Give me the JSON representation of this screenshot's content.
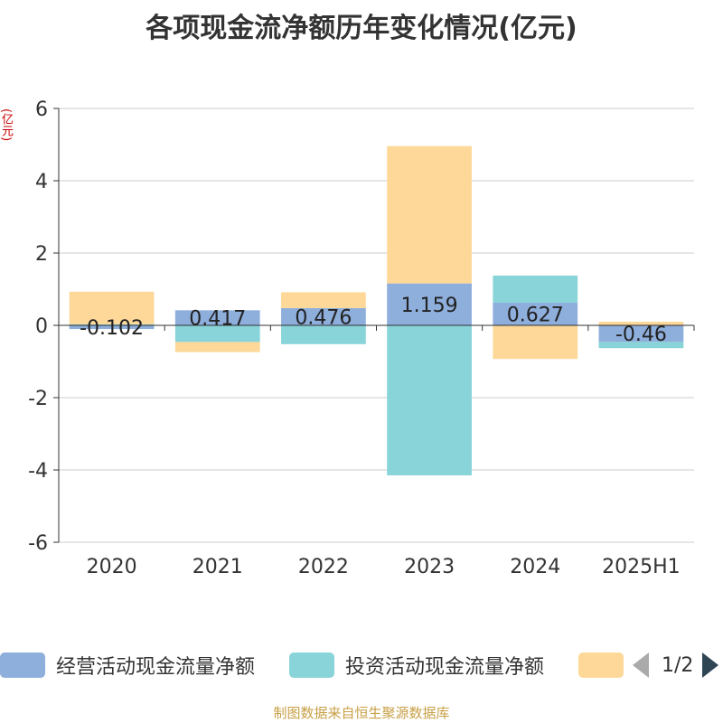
{
  "title": "各项现金流净额历年变化情况(亿元)",
  "unit_label": "(亿元)",
  "source": "制图数据来自恒生聚源数据库",
  "legend": {
    "items": [
      {
        "label": "经营活动现金流量净额",
        "color": "#8eaedc"
      },
      {
        "label": "投资活动现金流量净额",
        "color": "#88d4d8"
      },
      {
        "label": "",
        "color": "#fdd899"
      }
    ],
    "page": "1/2"
  },
  "chart_data": {
    "type": "bar",
    "stacked": true,
    "categories": [
      "2020",
      "2021",
      "2022",
      "2023",
      "2024",
      "2025H1"
    ],
    "ylim": [
      -6,
      6
    ],
    "yticks": [
      6,
      4,
      2,
      0,
      -2,
      -4,
      -6
    ],
    "series": [
      {
        "name": "经营活动现金流量净额",
        "color": "#8eaedc",
        "values": [
          -0.102,
          0.417,
          0.476,
          1.159,
          0.627,
          -0.46
        ],
        "labels": [
          "-0.102",
          "0.417",
          "0.476",
          "1.159",
          "0.627",
          "-0.46"
        ]
      },
      {
        "name": "投资活动现金流量净额",
        "color": "#88d4d8",
        "values": [
          0.03,
          -0.46,
          -0.52,
          -4.15,
          0.75,
          -0.17
        ]
      },
      {
        "name": "",
        "color": "#fdd899",
        "values": [
          0.9,
          -0.28,
          0.44,
          3.8,
          -0.93,
          0.1
        ]
      }
    ],
    "grid": true
  }
}
